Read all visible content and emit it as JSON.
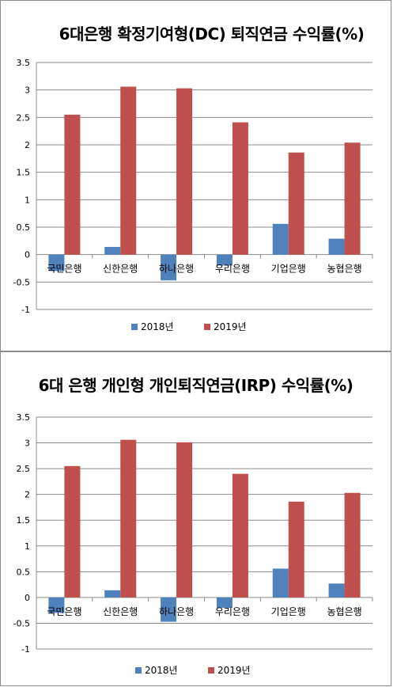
{
  "chart_data": [
    {
      "type": "bar",
      "title": "6대은행 확정기여형(DC) 퇴직연금 수익률(%)",
      "categories": [
        "국민은행",
        "신한은행",
        "하나은행",
        "우리은행",
        "기업은행",
        "농협은행"
      ],
      "series": [
        {
          "name": "2018년",
          "color": "#4f81bd",
          "values": [
            -0.3,
            0.14,
            -0.47,
            -0.2,
            0.56,
            0.29
          ]
        },
        {
          "name": "2019년",
          "color": "#c0504d",
          "values": [
            2.55,
            3.06,
            3.03,
            2.41,
            1.86,
            2.04
          ]
        }
      ],
      "ylim": [
        -1,
        3.5
      ],
      "yticks": [
        "3.5",
        "3",
        "2.5",
        "2",
        "1.5",
        "1",
        "0.5",
        "0",
        "-0.5",
        "-1"
      ],
      "grid": true,
      "legend": "bottom",
      "xlabel": "",
      "ylabel": ""
    },
    {
      "type": "bar",
      "title": "6대 은행 개인형 개인퇴직연금(IRP) 수익률(%)",
      "categories": [
        "국민은행",
        "신한은행",
        "하나은행",
        "우리은행",
        "기업은행",
        "농협은행"
      ],
      "series": [
        {
          "name": "2018년",
          "color": "#4f81bd",
          "values": [
            -0.3,
            0.14,
            -0.47,
            -0.2,
            0.56,
            0.27
          ]
        },
        {
          "name": "2019년",
          "color": "#c0504d",
          "values": [
            2.55,
            3.06,
            3.01,
            2.4,
            1.86,
            2.03
          ]
        }
      ],
      "ylim": [
        -1,
        3.5
      ],
      "yticks": [
        "3.5",
        "3",
        "2.5",
        "2",
        "1.5",
        "1",
        "0.5",
        "0",
        "-0.5",
        "-1"
      ],
      "grid": true,
      "legend": "bottom",
      "xlabel": "",
      "ylabel": ""
    }
  ]
}
